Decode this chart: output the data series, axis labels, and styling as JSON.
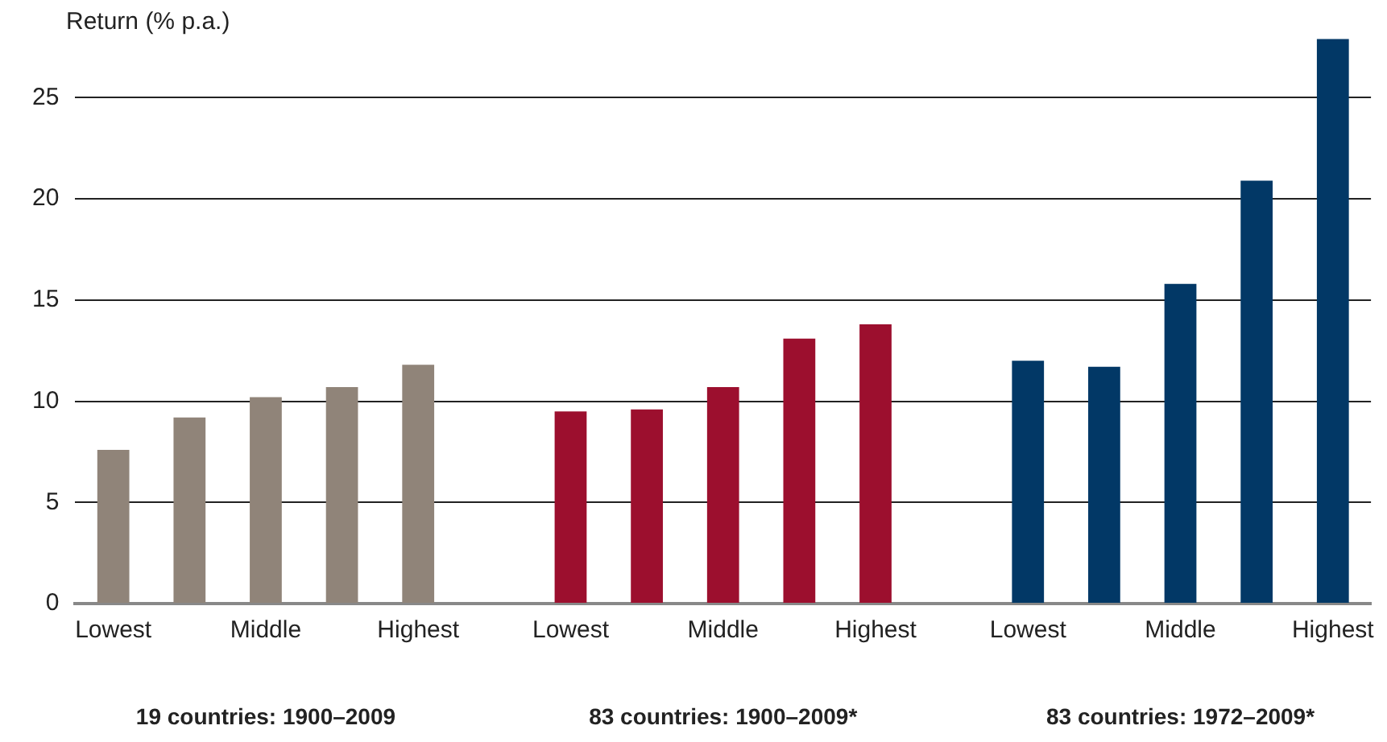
{
  "chart_data": {
    "type": "bar",
    "ylabel": "Return (% p.a.)",
    "categories": [
      "Lowest",
      null,
      "Middle",
      null,
      "Highest",
      "Lowest",
      null,
      "Middle",
      null,
      "Highest",
      "Lowest",
      null,
      "Middle",
      null,
      "Highest"
    ],
    "series": [
      {
        "color": "#908479",
        "values": [
          7.6,
          9.2,
          10.2,
          10.7,
          11.8,
          null,
          null,
          null,
          null,
          null,
          null,
          null,
          null,
          null,
          null
        ]
      },
      {
        "color": "#9c0f2e",
        "values": [
          null,
          null,
          null,
          null,
          null,
          9.5,
          9.6,
          10.7,
          13.1,
          13.8,
          null,
          null,
          null,
          null,
          null
        ]
      },
      {
        "color": "#023866",
        "values": [
          null,
          null,
          null,
          null,
          null,
          null,
          null,
          null,
          null,
          null,
          12.0,
          11.7,
          15.8,
          20.9,
          27.9
        ]
      }
    ],
    "annotations": [
      "19 countries: 1900–2009",
      "83 countries: 1900–2009*",
      "83 countries: 1972–2009*"
    ],
    "ylim": [
      0,
      28
    ],
    "yticks": [
      0,
      5,
      10,
      15,
      20,
      25
    ],
    "grid": "y",
    "legend": false
  }
}
